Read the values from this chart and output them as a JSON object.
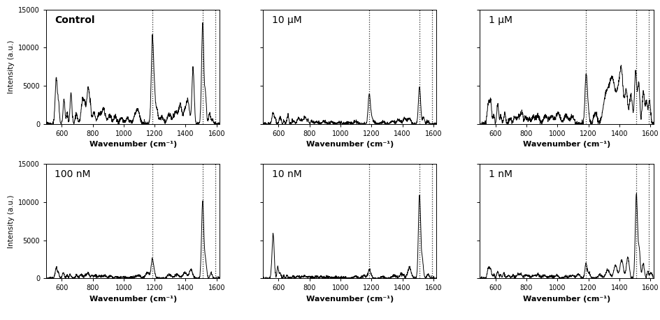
{
  "panels": [
    {
      "label": "Control",
      "bold": true
    },
    {
      "label": "10 μM",
      "bold": false
    },
    {
      "label": "1 μM",
      "bold": false
    },
    {
      "label": "100 nM",
      "bold": false
    },
    {
      "label": "10 nM",
      "bold": false
    },
    {
      "label": "1 nM",
      "bold": false
    }
  ],
  "xmin": 500,
  "xmax": 1620,
  "ymin": 0,
  "ymax": 15000,
  "yticks": [
    0,
    5000,
    10000,
    15000
  ],
  "xticks": [
    600,
    800,
    1000,
    1200,
    1400,
    1600
  ],
  "dashed_lines": [
    1185,
    1510,
    1590
  ],
  "xlabel": "Wavenumber (cm⁻¹)",
  "ylabel": "Intensity (a.u.)",
  "figsize": [
    9.44,
    4.59
  ],
  "dpi": 100
}
